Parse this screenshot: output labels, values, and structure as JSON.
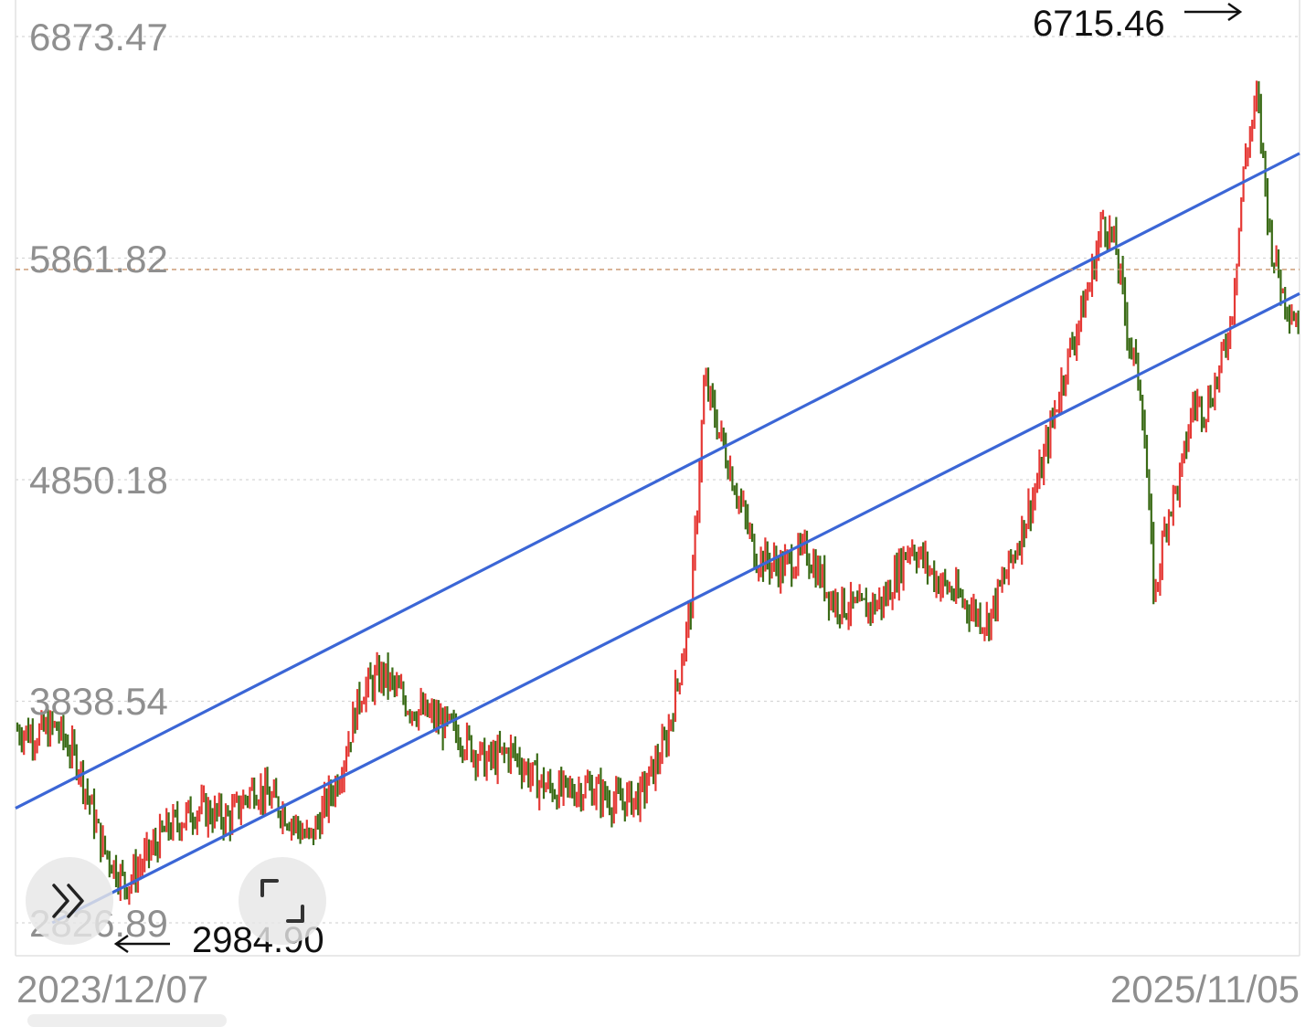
{
  "chart_data": {
    "type": "candlestick",
    "y_ticks": [
      "6873.47",
      "5861.82",
      "4850.18",
      "3838.54",
      "2826.89"
    ],
    "x_ticks": [
      "2023/12/07",
      "2025/11/05"
    ],
    "ylim": [
      2826.89,
      6873.47
    ],
    "xlim": [
      "2023/12/07",
      "2025/11/05"
    ],
    "grid": "horizontal dotted",
    "high": {
      "label": "6715.46",
      "date": "2025/10/13"
    },
    "low": {
      "label": "2984.90",
      "date": "2024/02/05"
    },
    "reference_level": 5810,
    "approx_close": 5560,
    "channel_lines": [
      {
        "name": "upper",
        "start": [
          "2023/12/07",
          3350
        ],
        "end": [
          "2025/11/05",
          6340
        ]
      },
      {
        "name": "lower",
        "start": [
          "2023/12/27",
          2826.89
        ],
        "end": [
          "2025/11/05",
          5700
        ]
      }
    ],
    "price_path": [
      [
        "2023/12/07",
        3710
      ],
      [
        "2023/12/18",
        3690
      ],
      [
        "2023/12/29",
        3720
      ],
      [
        "2024/01/10",
        3560
      ],
      [
        "2024/01/23",
        3180
      ],
      [
        "2024/02/05",
        3000
      ],
      [
        "2024/02/27",
        3250
      ],
      [
        "2024/03/15",
        3350
      ],
      [
        "2024/04/01",
        3300
      ],
      [
        "2024/04/15",
        3450
      ],
      [
        "2024/04/30",
        3350
      ],
      [
        "2024/05/15",
        3200
      ],
      [
        "2024/05/31",
        3500
      ],
      [
        "2024/06/12",
        3880
      ],
      [
        "2024/06/24",
        3960
      ],
      [
        "2024/07/08",
        3820
      ],
      [
        "2024/07/22",
        3760
      ],
      [
        "2024/08/05",
        3680
      ],
      [
        "2024/08/19",
        3560
      ],
      [
        "2024/09/02",
        3610
      ],
      [
        "2024/09/16",
        3470
      ],
      [
        "2024/09/30",
        3420
      ],
      [
        "2024/10/14",
        3450
      ],
      [
        "2024/10/28",
        3380
      ],
      [
        "2024/11/11",
        3400
      ],
      [
        "2024/11/25",
        3650
      ],
      [
        "2024/12/02",
        3950
      ],
      [
        "2024/12/09",
        4300
      ],
      [
        "2024/12/16",
        5300
      ],
      [
        "2024/12/30",
        4900
      ],
      [
        "2025/01/13",
        4500
      ],
      [
        "2025/01/27",
        4450
      ],
      [
        "2025/02/10",
        4520
      ],
      [
        "2025/02/24",
        4300
      ],
      [
        "2025/03/10",
        4250
      ],
      [
        "2025/03/24",
        4300
      ],
      [
        "2025/04/07",
        4560
      ],
      [
        "2025/04/21",
        4400
      ],
      [
        "2025/05/05",
        4300
      ],
      [
        "2025/05/19",
        4200
      ],
      [
        "2025/06/02",
        4500
      ],
      [
        "2025/06/16",
        4850
      ],
      [
        "2025/06/30",
        5350
      ],
      [
        "2025/07/14",
        5750
      ],
      [
        "2025/07/21",
        6050
      ],
      [
        "2025/07/28",
        5900
      ],
      [
        "2025/08/04",
        5500
      ],
      [
        "2025/08/11",
        5250
      ],
      [
        "2025/08/18",
        4300
      ],
      [
        "2025/08/25",
        4700
      ],
      [
        "2025/09/01",
        4850
      ],
      [
        "2025/09/08",
        5200
      ],
      [
        "2025/09/15",
        5180
      ],
      [
        "2025/09/22",
        5330
      ],
      [
        "2025/09/29",
        5600
      ],
      [
        "2025/10/06",
        6300
      ],
      [
        "2025/10/13",
        6600
      ],
      [
        "2025/10/20",
        5950
      ],
      [
        "2025/10/27",
        5700
      ],
      [
        "2025/11/05",
        5560
      ]
    ]
  },
  "high_label": "6715.46",
  "low_label": "2984.90",
  "controls": {
    "expand_icon": "double-chevron-right-icon",
    "fullscreen_icon": "fullscreen-corners-icon"
  },
  "colors": {
    "up": "#e53935",
    "down": "#3a6b16",
    "channel": "#3b66d6",
    "grid": "#d6d6d6",
    "reference": "#c8936a",
    "axis_text": "#8f8f8f"
  }
}
